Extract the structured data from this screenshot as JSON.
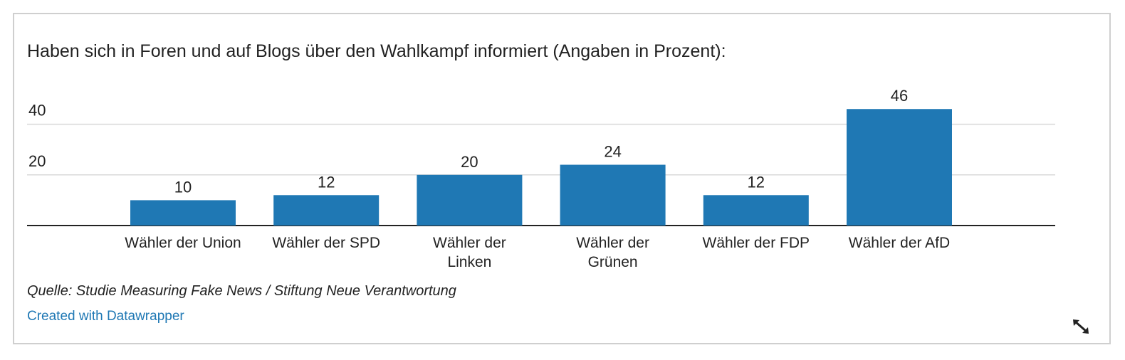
{
  "chart_data": {
    "type": "bar",
    "title": "Haben sich in Foren und auf Blogs über den Wahlkampf informiert (Angaben in Prozent):",
    "categories": [
      [
        "Wähler der Union"
      ],
      [
        "Wähler der SPD"
      ],
      [
        "Wähler der",
        "Linken"
      ],
      [
        "Wähler der",
        "Grünen"
      ],
      [
        "Wähler der FDP"
      ],
      [
        "Wähler der AfD"
      ]
    ],
    "values": [
      10,
      12,
      20,
      24,
      12,
      46
    ],
    "yticks": [
      20,
      40
    ],
    "ylim": [
      0,
      46
    ],
    "grid": true,
    "legend": "none",
    "bar_color": "#1f78b4"
  },
  "footer": {
    "source": "Quelle: Studie Measuring Fake News / Stiftung Neue Verantwortung",
    "credit": "Created with Datawrapper"
  },
  "icons": {
    "resize": "resize-diagonal-icon"
  },
  "colors": {
    "accent": "#1f78b4",
    "grid": "#d9d9d9",
    "axis": "#222222"
  }
}
